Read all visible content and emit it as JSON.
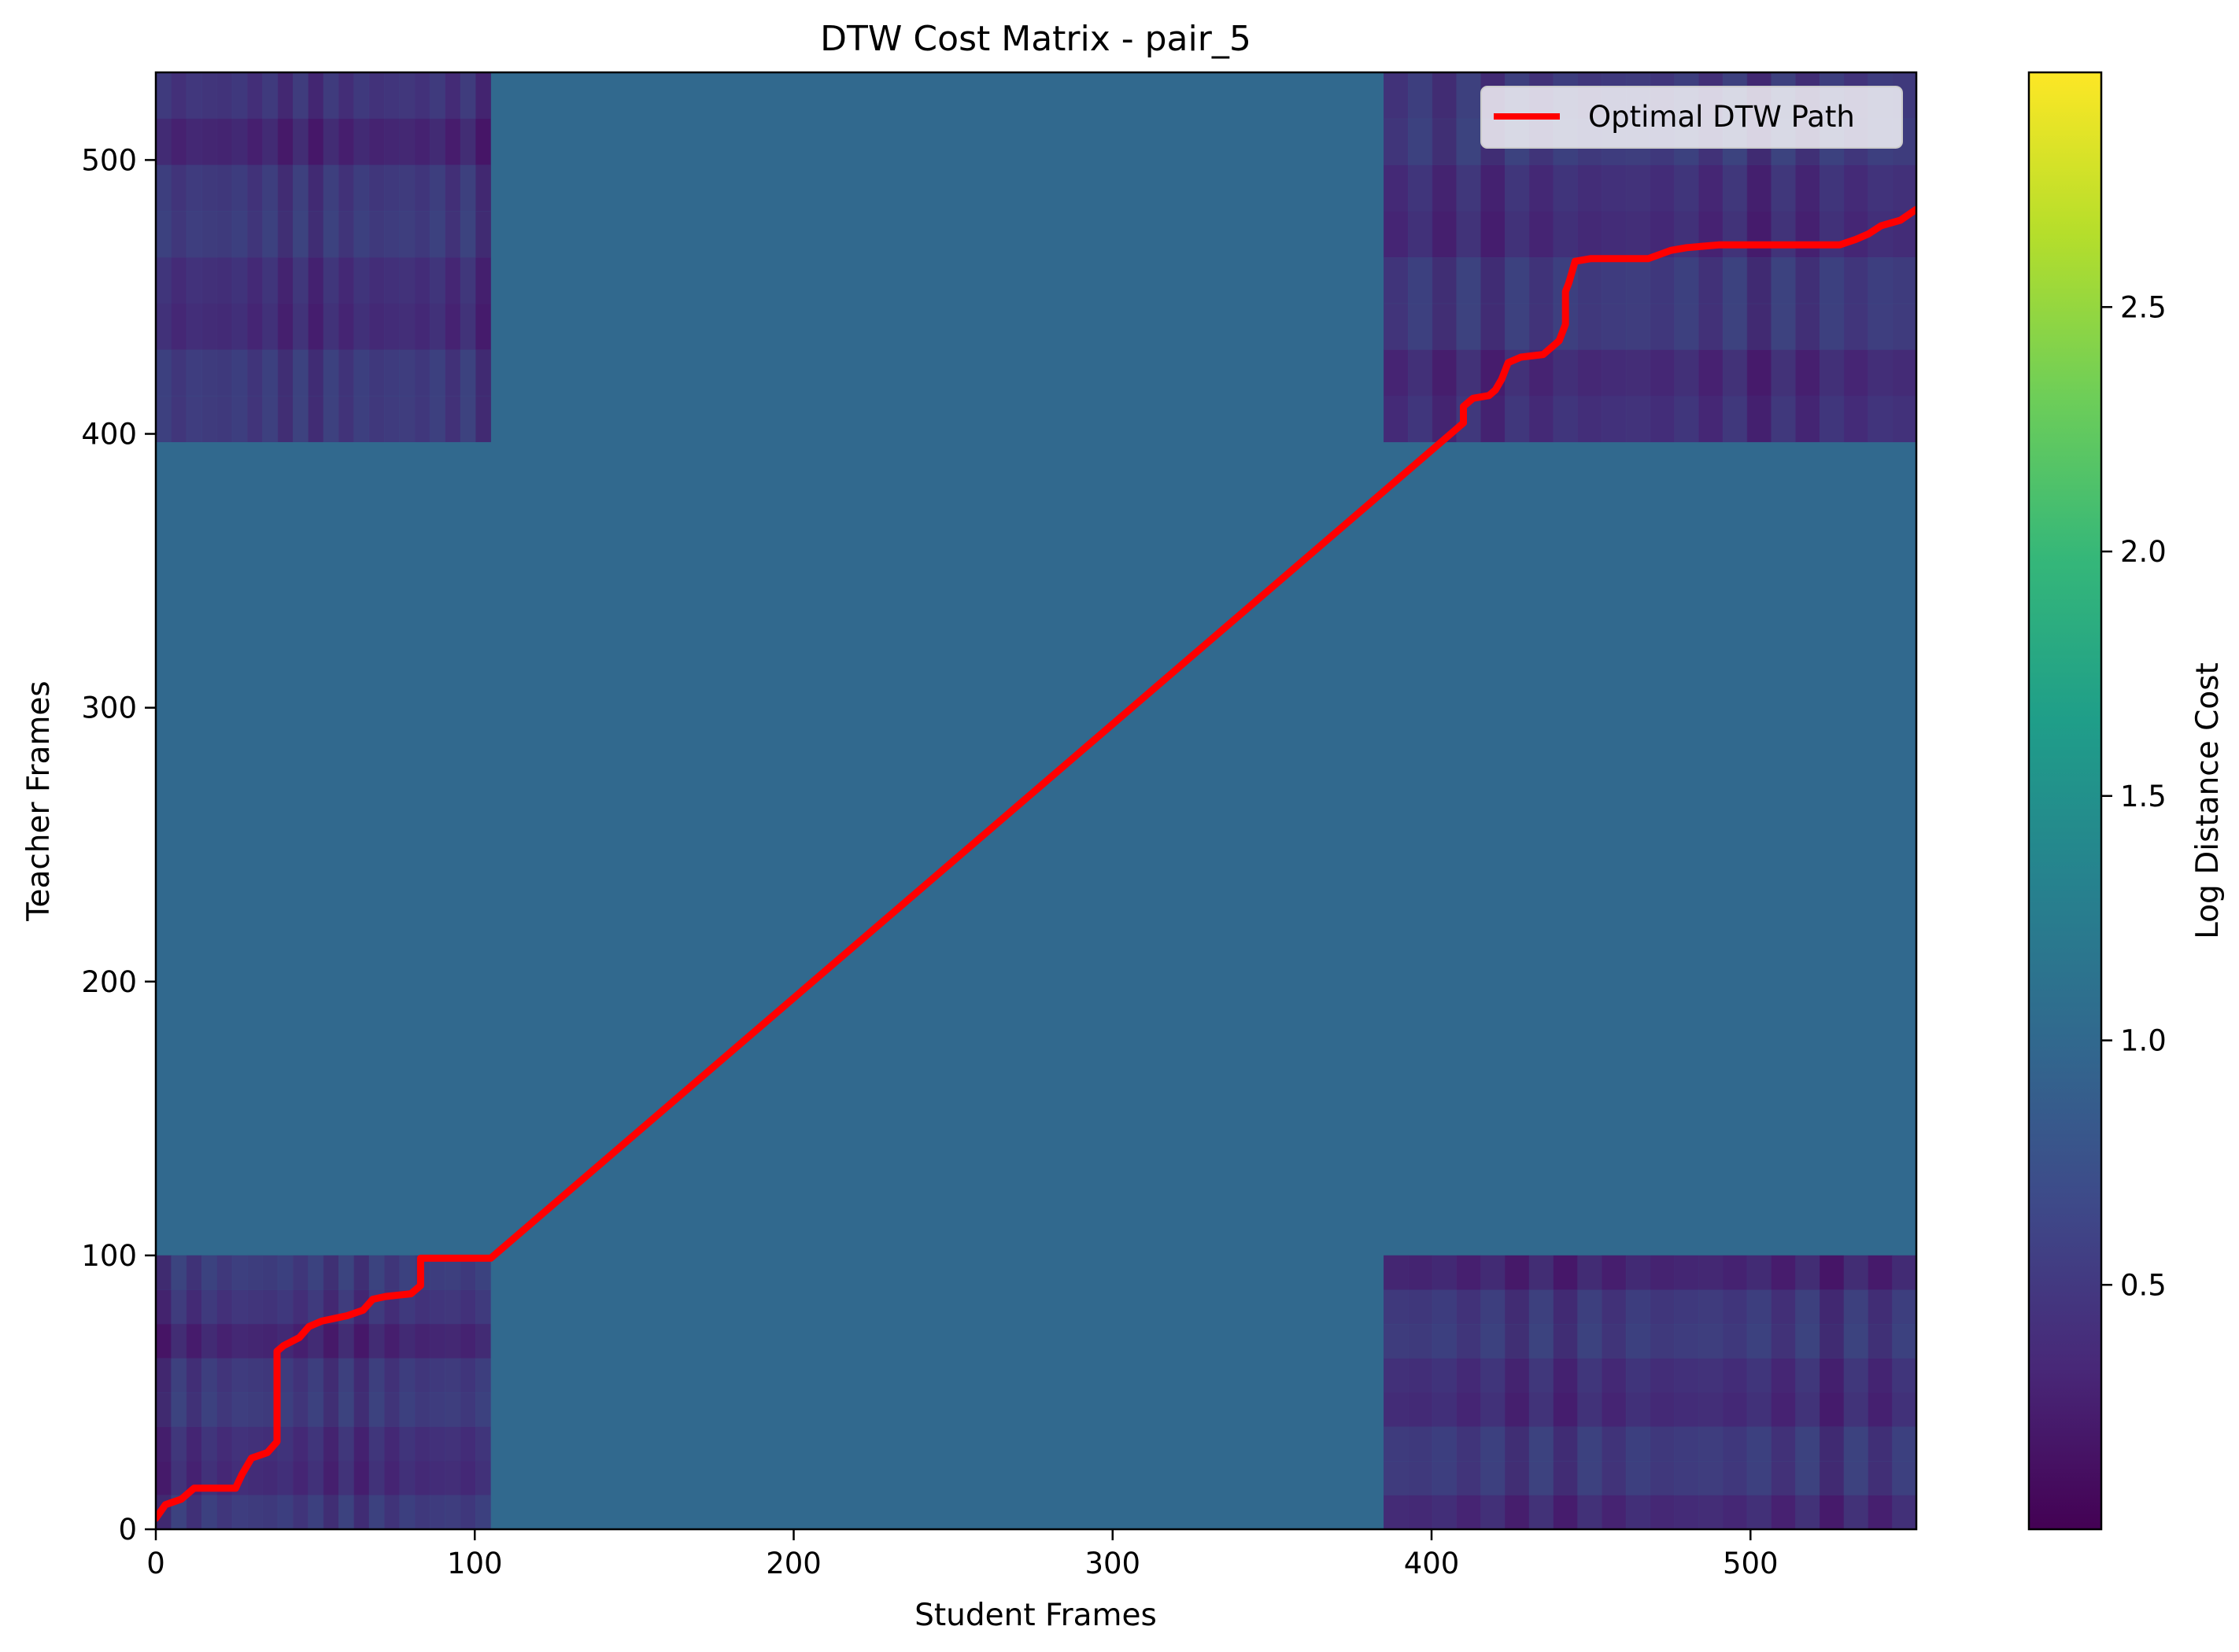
{
  "chart_data": {
    "type": "heatmap",
    "title": "DTW Cost Matrix - pair_5",
    "xlabel": "Student Frames",
    "ylabel": "Teacher Frames",
    "xlim": [
      0,
      552
    ],
    "ylim": [
      0,
      532
    ],
    "x_ticks": [
      0,
      100,
      200,
      300,
      400,
      500
    ],
    "y_ticks": [
      0,
      100,
      200,
      300,
      400,
      500
    ],
    "colorbar": {
      "label": "Log Distance Cost",
      "colormap": "viridis",
      "range": [
        0.0,
        2.98
      ],
      "ticks": [
        0.5,
        1.0,
        1.5,
        2.0,
        2.5
      ]
    },
    "background_cost": 1.0,
    "low_cost_blocks": [
      {
        "x": [
          0,
          105
        ],
        "y": [
          0,
          100
        ]
      },
      {
        "x": [
          0,
          105
        ],
        "y": [
          397,
          532
        ]
      },
      {
        "x": [
          385,
          552
        ],
        "y": [
          0,
          100
        ]
      },
      {
        "x": [
          385,
          552
        ],
        "y": [
          397,
          532
        ]
      }
    ],
    "series": [
      {
        "name": "Optimal DTW Path",
        "color": "#ff0000",
        "x": [
          0,
          3,
          8,
          12,
          25,
          27,
          30,
          35,
          38,
          38,
          40,
          45,
          48,
          52,
          60,
          65,
          68,
          72,
          80,
          83,
          83,
          88,
          100,
          105,
          405,
          410,
          410,
          413,
          418,
          420,
          422,
          424,
          428,
          435,
          440,
          442,
          442,
          443,
          445,
          450,
          468,
          475,
          480,
          490,
          510,
          528,
          533,
          537,
          541,
          547,
          552
        ],
        "y": [
          4,
          9,
          11,
          15,
          15,
          20,
          26,
          28,
          32,
          65,
          67,
          70,
          74,
          76,
          78,
          80,
          84,
          85,
          86,
          89,
          99,
          99,
          99,
          99,
          399,
          404,
          410,
          413,
          414,
          416,
          420,
          426,
          428,
          429,
          434,
          440,
          452,
          455,
          463,
          464,
          464,
          467,
          468,
          469,
          469,
          469,
          471,
          473,
          476,
          478,
          482
        ]
      }
    ],
    "legend": {
      "position": "upper-right"
    }
  }
}
